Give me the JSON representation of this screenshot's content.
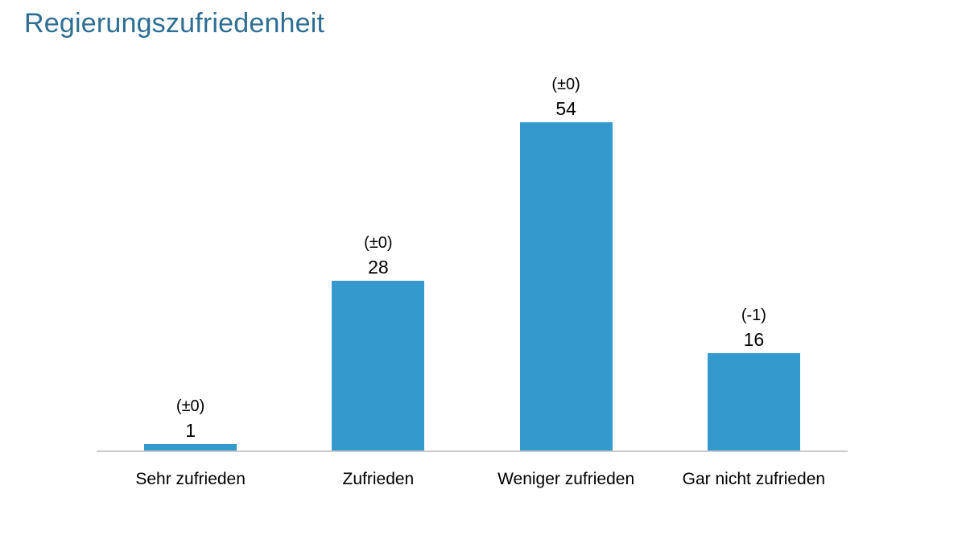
{
  "title": "Regierungszufriedenheit",
  "colors": {
    "title": "#2d6e93",
    "bar": "#3499cc",
    "axis_line": "#c8c8c8",
    "text": "#000000",
    "background": "#ffffff"
  },
  "chart_data": {
    "type": "bar",
    "title": "Regierungszufriedenheit",
    "categories": [
      "Sehr zufrieden",
      "Zufrieden",
      "Weniger zufrieden",
      "Gar nicht zufrieden"
    ],
    "values": [
      1,
      28,
      54,
      16
    ],
    "change_labels": [
      "(±0)",
      "(±0)",
      "(±0)",
      "(-1)"
    ],
    "xlabel": "",
    "ylabel": "",
    "ylim": [
      0,
      60
    ],
    "grid": false,
    "legend": false,
    "bar_color": "#3499cc",
    "annotation_note": "value above each bar with change vs. previous survey in parentheses"
  }
}
